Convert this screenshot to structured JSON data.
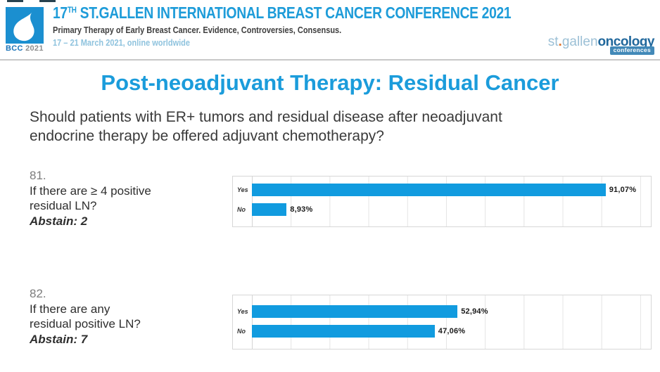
{
  "header": {
    "logo_text": "BCC",
    "logo_year": "2021",
    "conference_title_prefix": "17",
    "conference_title_ordinal": "TH",
    "conference_title_rest": "ST.GALLEN INTERNATIONAL BREAST CANCER CONFERENCE 2021",
    "subtitle": "Primary Therapy of Early Breast Cancer. Evidence, Controversies, Consensus.",
    "dates": "17 – 21 March 2021, online worldwide",
    "brand_st": "st",
    "brand_dot": ".",
    "brand_gallen": "gallen",
    "brand_oncology": "oncology",
    "brand_conferences": "conferences"
  },
  "slide": {
    "title": "Post-neoadjuvant Therapy: Residual Cancer",
    "question_line1": "Should patients with ER+ tumors and residual disease after neoadjuvant",
    "question_line2": "endocrine therapy be offered adjuvant chemotherapy?"
  },
  "polls": [
    {
      "number": "81.",
      "line1": "If there are ≥ 4 positive",
      "line2": "residual LN?",
      "abstain": "Abstain: 2"
    },
    {
      "number": "82.",
      "line1": "If there are any",
      "line2": "residual positive LN?",
      "abstain": "Abstain: 7"
    }
  ],
  "chart_data": [
    {
      "type": "bar",
      "orientation": "horizontal",
      "title": "Question 81 vote result",
      "categories": [
        "Yes",
        "No"
      ],
      "values": [
        91.07,
        8.93
      ],
      "value_labels": [
        "91,07%",
        "8,93%"
      ],
      "xlim": [
        0,
        100
      ],
      "grid": true,
      "gridline_step_percent": 10,
      "legend": "none"
    },
    {
      "type": "bar",
      "orientation": "horizontal",
      "title": "Question 82 vote result",
      "categories": [
        "Yes",
        "No"
      ],
      "values": [
        52.94,
        47.06
      ],
      "value_labels": [
        "52,94%",
        "47,06%"
      ],
      "xlim": [
        0,
        100
      ],
      "grid": true,
      "gridline_step_percent": 10,
      "legend": "none"
    }
  ],
  "colors": {
    "bar_blue": "#119bdf",
    "slide_title_blue": "#1b9cdb",
    "header_title_blue": "#1e9cd9",
    "dates_light_blue": "#8fc3de",
    "brand_light_blue": "#9cc0d6",
    "brand_dark_blue": "#21689c",
    "brand_orange": "#e0762e",
    "logo_blue": "#1b8fd0",
    "gridline_gray": "#e4e4e4"
  }
}
